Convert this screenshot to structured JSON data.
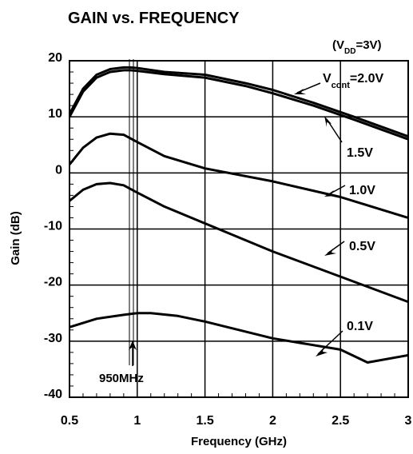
{
  "chart_data": {
    "type": "line",
    "title": "GAIN vs. FREQUENCY",
    "condition": {
      "open": "(V",
      "sub": "DD",
      "close": "=3V)"
    },
    "xlabel": "Frequency (GHz)",
    "ylabel": "Gain (dB)",
    "xlim": [
      0.5,
      3
    ],
    "ylim": [
      -40,
      20
    ],
    "xticks": [
      "0.5",
      "1",
      "1.5",
      "2",
      "2.5",
      "3"
    ],
    "yticks": [
      "20",
      "10",
      "0",
      "-10",
      "-20",
      "-30",
      "-40"
    ],
    "grid": true,
    "marker": {
      "x": 0.95,
      "label": "950MHz"
    },
    "series": [
      {
        "name": "V_cont=2.0V",
        "label": "2.0V",
        "x": [
          0.5,
          0.6,
          0.7,
          0.8,
          0.9,
          0.95,
          1.0,
          1.2,
          1.5,
          1.8,
          2.0,
          2.3,
          2.6,
          3.0
        ],
        "y": [
          10.5,
          15.0,
          17.5,
          18.5,
          18.8,
          18.8,
          18.7,
          18.0,
          17.5,
          16.0,
          14.8,
          12.5,
          10.0,
          6.5
        ]
      },
      {
        "name": "1.5V",
        "label": "1.5V",
        "x": [
          0.5,
          0.6,
          0.7,
          0.8,
          0.9,
          0.95,
          1.0,
          1.2,
          1.5,
          1.8,
          2.0,
          2.3,
          2.6,
          3.0
        ],
        "y": [
          10.0,
          14.5,
          17.0,
          18.0,
          18.3,
          18.3,
          18.2,
          17.6,
          17.0,
          15.5,
          14.2,
          12.0,
          9.5,
          6.0
        ]
      },
      {
        "name": "1.0V",
        "label": "1.0V",
        "x": [
          0.5,
          0.6,
          0.7,
          0.8,
          0.9,
          1.0,
          1.2,
          1.5,
          2.0,
          2.5,
          3.0
        ],
        "y": [
          1.5,
          4.5,
          6.3,
          7.0,
          6.8,
          5.5,
          3.0,
          0.8,
          -1.5,
          -4.3,
          -8.0
        ]
      },
      {
        "name": "0.5V",
        "label": "0.5V",
        "x": [
          0.5,
          0.6,
          0.7,
          0.8,
          0.9,
          1.0,
          1.2,
          1.5,
          2.0,
          2.5,
          3.0
        ],
        "y": [
          -5.0,
          -3.0,
          -2.0,
          -1.8,
          -2.2,
          -3.5,
          -6.0,
          -9.0,
          -14.0,
          -18.5,
          -23.0
        ]
      },
      {
        "name": "0.1V",
        "label": "0.1V",
        "x": [
          0.5,
          0.7,
          0.9,
          1.0,
          1.1,
          1.3,
          1.5,
          2.0,
          2.5,
          2.7,
          3.0
        ],
        "y": [
          -27.5,
          -26.0,
          -25.3,
          -25.0,
          -25.0,
          -25.5,
          -26.5,
          -29.5,
          -31.5,
          -33.8,
          -32.5
        ]
      }
    ]
  },
  "annotations": {
    "cont_label": {
      "pre": "V",
      "sub": "cont",
      "post": "=2.0V"
    }
  }
}
